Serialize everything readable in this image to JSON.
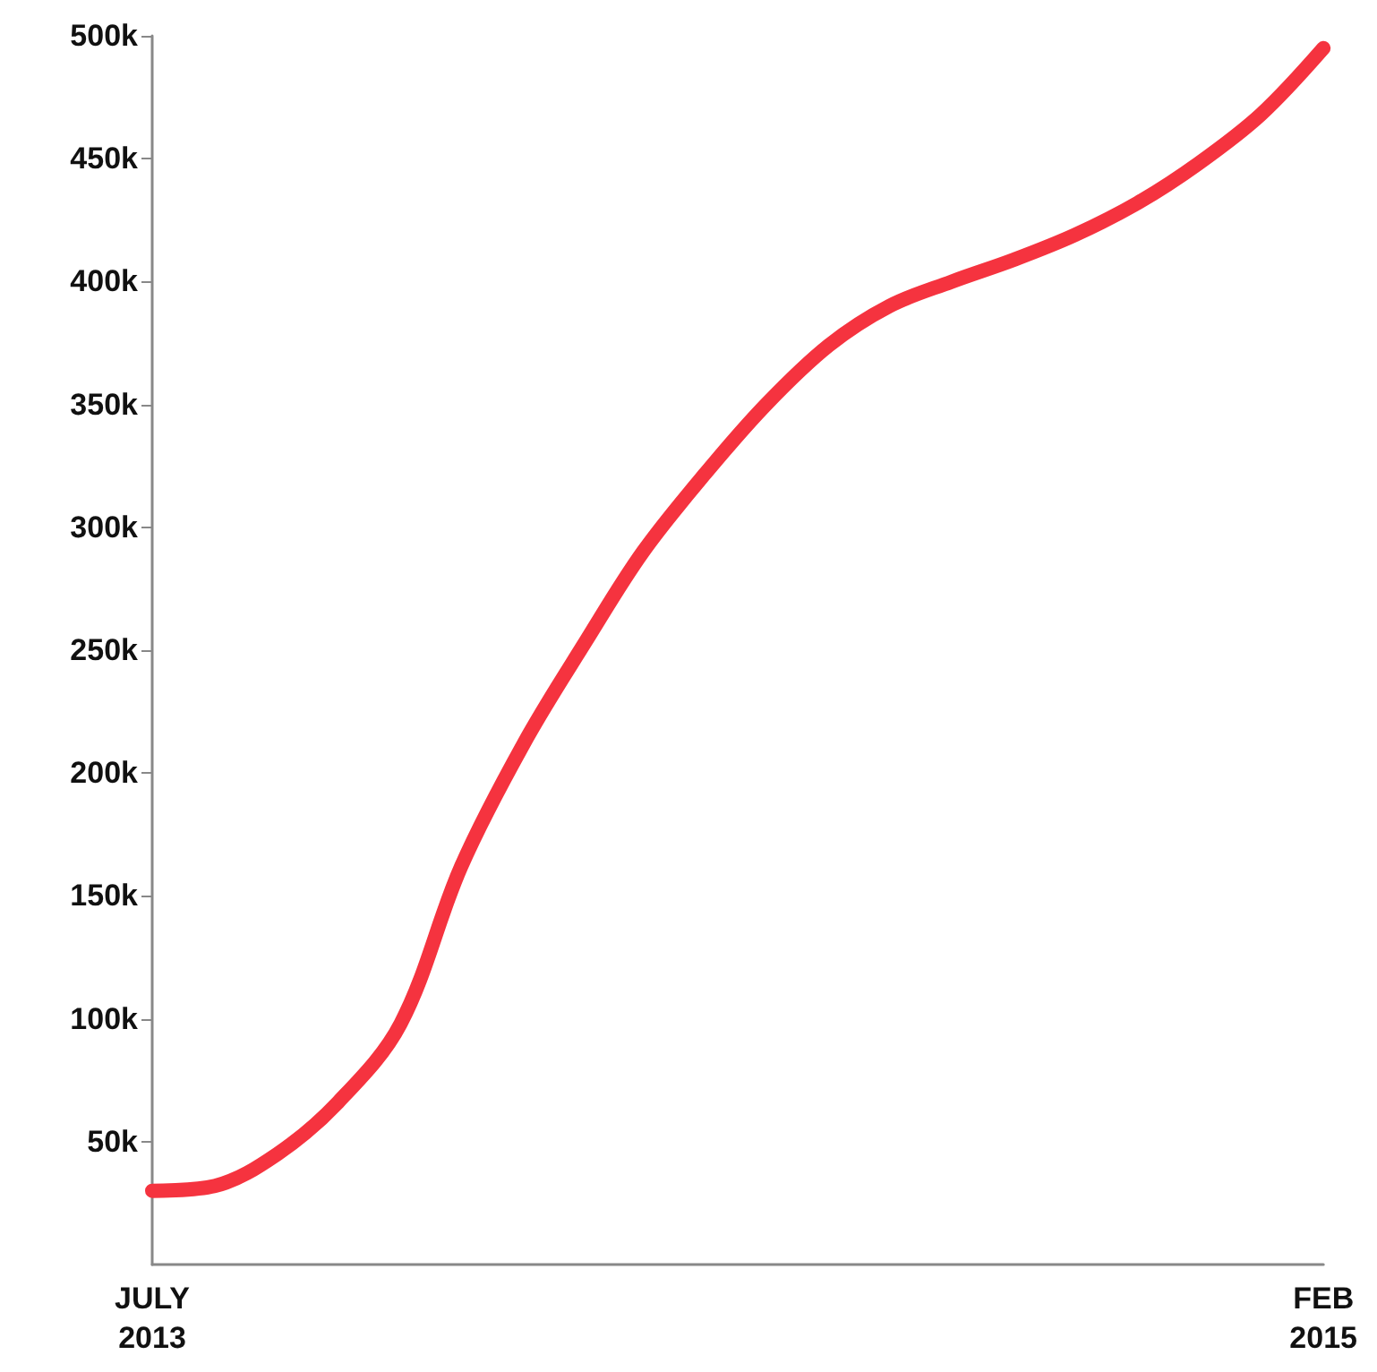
{
  "chart_data": {
    "type": "line",
    "x": [
      "2013-07",
      "2013-08",
      "2013-09",
      "2013-10",
      "2013-11",
      "2013-12",
      "2014-01",
      "2014-02",
      "2014-03",
      "2014-04",
      "2014-05",
      "2014-06",
      "2014-07",
      "2014-08",
      "2014-09",
      "2014-10",
      "2014-11",
      "2014-12",
      "2015-01",
      "2015-02"
    ],
    "series": [
      {
        "color": "#f5333f",
        "values": [
          30000,
          32000,
          45000,
          66000,
          98000,
          162000,
          212000,
          254000,
          290000,
          322000,
          350000,
          374000,
          390000,
          400000,
          409000,
          419000,
          432000,
          448000,
          468000,
          495000
        ]
      }
    ],
    "xlim": [
      "2013-07",
      "2015-02"
    ],
    "xticks": [
      {
        "value": "2013-07",
        "label": "JULY\n2013"
      },
      {
        "value": "2015-02",
        "label": "FEB\n2015"
      }
    ],
    "ylim": [
      0,
      500000
    ],
    "yticks": [
      {
        "value": 50000,
        "label": "50k"
      },
      {
        "value": 100000,
        "label": "100k"
      },
      {
        "value": 150000,
        "label": "150k"
      },
      {
        "value": 200000,
        "label": "200k"
      },
      {
        "value": 250000,
        "label": "250k"
      },
      {
        "value": 300000,
        "label": "300k"
      },
      {
        "value": 350000,
        "label": "350k"
      },
      {
        "value": 400000,
        "label": "400k"
      },
      {
        "value": 450000,
        "label": "450k"
      },
      {
        "value": 500000,
        "label": "500k"
      }
    ],
    "grid": false,
    "line_style": "solid"
  }
}
